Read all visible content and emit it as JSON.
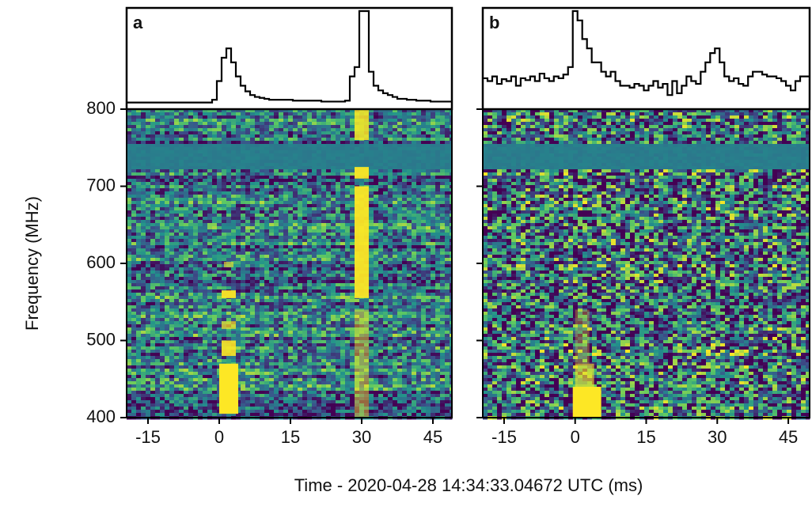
{
  "figure": {
    "x_label": "Time - 2020-04-28 14:34:33.04672 UTC (ms)",
    "y_label": "Frequency (MHz)"
  },
  "chart_data": [
    {
      "type": "waterfall",
      "label": "a",
      "xlim": [
        -19.5,
        49
      ],
      "xticks": [
        -15,
        0,
        15,
        30,
        45
      ],
      "ylim": [
        400,
        800
      ],
      "yticks": [
        400,
        500,
        600,
        700,
        800
      ],
      "profile": {
        "ylim": [
          0,
          1
        ],
        "x": [
          -19,
          -18,
          -17,
          -16,
          -15,
          -14,
          -13,
          -12,
          -11,
          -10,
          -9,
          -8,
          -7,
          -6,
          -5,
          -4,
          -3,
          -2,
          -1,
          0,
          1,
          2,
          3,
          4,
          5,
          6,
          7,
          8,
          9,
          10,
          11,
          12,
          13,
          14,
          15,
          16,
          17,
          18,
          19,
          20,
          21,
          22,
          23,
          24,
          25,
          26,
          27,
          28,
          29,
          30,
          31,
          32,
          33,
          34,
          35,
          36,
          37,
          38,
          39,
          40,
          41,
          42,
          43,
          44,
          45,
          46,
          47,
          48
        ],
        "values": [
          0.02,
          0.02,
          0.02,
          0.02,
          0.02,
          0.02,
          0.02,
          0.02,
          0.02,
          0.02,
          0.02,
          0.02,
          0.02,
          0.02,
          0.02,
          0.02,
          0.02,
          0.02,
          0.05,
          0.25,
          0.5,
          0.6,
          0.45,
          0.3,
          0.2,
          0.14,
          0.1,
          0.08,
          0.07,
          0.06,
          0.05,
          0.05,
          0.05,
          0.05,
          0.05,
          0.04,
          0.04,
          0.04,
          0.04,
          0.04,
          0.04,
          0.03,
          0.03,
          0.03,
          0.03,
          0.03,
          0.04,
          0.3,
          0.4,
          1.0,
          1.0,
          0.35,
          0.2,
          0.15,
          0.12,
          0.1,
          0.08,
          0.06,
          0.06,
          0.05,
          0.05,
          0.04,
          0.04,
          0.04,
          0.03,
          0.03,
          0.03,
          0.03
        ]
      },
      "bursts": [
        {
          "t": 2,
          "duration": 4,
          "f_low": 405,
          "f_high": 470,
          "intensity": 1.0
        },
        {
          "t": 2,
          "duration": 3,
          "f_low": 480,
          "f_high": 500,
          "intensity": 0.9
        },
        {
          "t": 2,
          "duration": 3,
          "f_low": 515,
          "f_high": 525,
          "intensity": 0.7
        },
        {
          "t": 2,
          "duration": 3,
          "f_low": 555,
          "f_high": 565,
          "intensity": 0.95
        },
        {
          "t": 2,
          "duration": 2,
          "f_low": 595,
          "f_high": 602,
          "intensity": 0.6
        },
        {
          "t": 30,
          "duration": 3,
          "f_low": 400,
          "f_high": 540,
          "intensity": 0.45
        },
        {
          "t": 30,
          "duration": 3,
          "f_low": 555,
          "f_high": 700,
          "intensity": 0.95
        },
        {
          "t": 30,
          "duration": 3,
          "f_low": 710,
          "f_high": 725,
          "intensity": 0.95
        },
        {
          "t": 30,
          "duration": 3,
          "f_low": 760,
          "f_high": 800,
          "intensity": 0.85
        }
      ]
    },
    {
      "type": "waterfall",
      "label": "b",
      "xlim": [
        -19.5,
        49.5
      ],
      "xticks": [
        -15,
        0,
        15,
        30,
        45
      ],
      "ylim": [
        400,
        800
      ],
      "profile": {
        "ylim": [
          0,
          1
        ],
        "x": [
          -19,
          -18,
          -17,
          -16,
          -15,
          -14,
          -13,
          -12,
          -11,
          -10,
          -9,
          -8,
          -7,
          -6,
          -5,
          -4,
          -3,
          -2,
          -1,
          0,
          1,
          2,
          3,
          4,
          5,
          6,
          7,
          8,
          9,
          10,
          11,
          12,
          13,
          14,
          15,
          16,
          17,
          18,
          19,
          20,
          21,
          22,
          23,
          24,
          25,
          26,
          27,
          28,
          29,
          30,
          31,
          32,
          33,
          34,
          35,
          36,
          37,
          38,
          39,
          40,
          41,
          42,
          43,
          44,
          45,
          46,
          47,
          48
        ],
        "values": [
          0.28,
          0.25,
          0.3,
          0.22,
          0.27,
          0.25,
          0.3,
          0.2,
          0.28,
          0.26,
          0.3,
          0.25,
          0.33,
          0.28,
          0.25,
          0.3,
          0.28,
          0.32,
          0.4,
          1.0,
          0.9,
          0.7,
          0.6,
          0.45,
          0.45,
          0.35,
          0.3,
          0.35,
          0.25,
          0.2,
          0.2,
          0.18,
          0.22,
          0.2,
          0.15,
          0.2,
          0.25,
          0.18,
          0.22,
          0.1,
          0.25,
          0.12,
          0.2,
          0.3,
          0.25,
          0.22,
          0.35,
          0.45,
          0.55,
          0.6,
          0.45,
          0.3,
          0.25,
          0.28,
          0.22,
          0.2,
          0.3,
          0.35,
          0.35,
          0.32,
          0.3,
          0.3,
          0.28,
          0.25,
          0.2,
          0.15,
          0.25,
          0.3
        ]
      },
      "bursts": [
        {
          "t": 2.5,
          "duration": 6,
          "f_low": 400,
          "f_high": 440,
          "intensity": 1.0
        },
        {
          "t": 2,
          "duration": 4,
          "f_low": 440,
          "f_high": 470,
          "intensity": 0.6
        },
        {
          "t": 1.5,
          "duration": 3,
          "f_low": 470,
          "f_high": 540,
          "intensity": 0.3
        }
      ]
    }
  ]
}
